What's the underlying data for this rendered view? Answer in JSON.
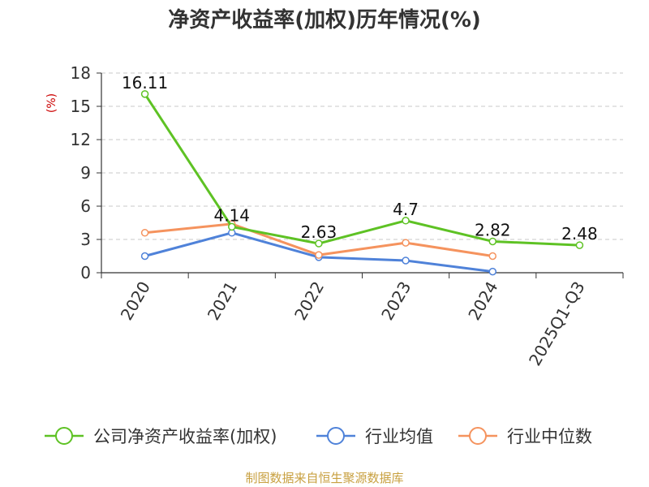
{
  "chart_data": {
    "type": "line",
    "title": "净资产收益率(加权)历年情况(%)",
    "ylabel": "(%)",
    "ylim": [
      0,
      18
    ],
    "yticks": [
      0,
      3,
      6,
      9,
      12,
      15,
      18
    ],
    "grid": true,
    "legend_position": "bottom",
    "categories": [
      "2020",
      "2021",
      "2022",
      "2023",
      "2024",
      "2025Q1-Q3"
    ],
    "series": [
      {
        "name": "公司净资产收益率(加权)",
        "color": "#5ec224",
        "values": [
          16.11,
          4.14,
          2.63,
          4.7,
          2.82,
          2.48
        ],
        "labels": [
          "16.11",
          "4.14",
          "2.63",
          "4.7",
          "2.82",
          "2.48"
        ]
      },
      {
        "name": "行业均值",
        "color": "#4f82d9",
        "values": [
          1.5,
          3.6,
          1.4,
          1.1,
          0.1,
          null
        ]
      },
      {
        "name": "行业中位数",
        "color": "#f5935e",
        "values": [
          3.6,
          4.4,
          1.6,
          2.7,
          1.5,
          null
        ]
      }
    ],
    "source": "制图数据来自恒生聚源数据库"
  }
}
